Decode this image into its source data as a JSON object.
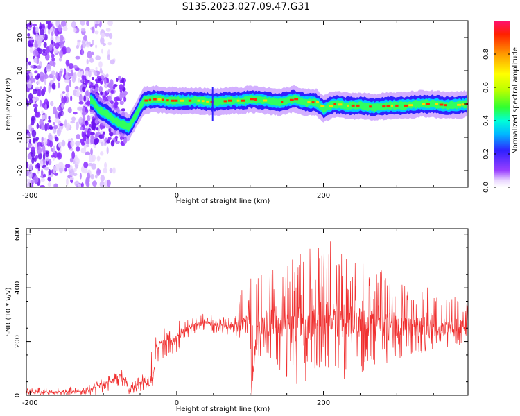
{
  "title": "S135.2023.027.09.47.G31",
  "chart_data": [
    {
      "type": "heatmap",
      "xlabel": "Height of straight line (km)",
      "ylabel": "Frequency (Hz)",
      "xlim": [
        -205,
        397
      ],
      "ylim": [
        -25,
        25
      ],
      "xticks": [
        -200,
        0,
        200
      ],
      "yticks": [
        -20,
        -10,
        0,
        10,
        20
      ],
      "colorbar": {
        "label": "Normalized spectral amplitude",
        "ticks": [
          "0.0",
          "0.2",
          "0.4",
          "0.6",
          "0.8"
        ],
        "tick_values": [
          0.0,
          0.2,
          0.4,
          0.6,
          0.8
        ],
        "range": [
          0,
          1
        ]
      },
      "ridge": {
        "x": [
          -115,
          -105,
          -95,
          -85,
          -75,
          -65,
          -55,
          -45,
          -30,
          -10,
          10,
          30,
          50,
          70,
          90,
          100,
          120,
          140,
          160,
          175,
          190,
          200,
          215,
          230,
          250,
          270,
          290,
          310,
          330,
          350,
          370,
          397
        ],
        "y": [
          1,
          -2,
          -3,
          -5,
          -6,
          -7,
          -3,
          1,
          1.5,
          1,
          1,
          1,
          0.5,
          1,
          1,
          1.5,
          1,
          0.5,
          1.5,
          0.5,
          0.5,
          -1.5,
          0,
          -0.5,
          -0.5,
          -1,
          -0.5,
          -0.5,
          0,
          0,
          -0.5,
          0
        ]
      }
    },
    {
      "type": "line",
      "xlabel": "Height of straight line (km)",
      "ylabel": "SNR (10 * v/v)",
      "xlim": [
        -205,
        397
      ],
      "ylim": [
        0,
        620
      ],
      "xticks": [
        -200,
        0,
        200
      ],
      "yticks": [
        0,
        200,
        400,
        600
      ],
      "color": "#f03030",
      "series": [
        {
          "x": [
            -205,
            -180,
            -150,
            -125,
            -110,
            -95,
            -85,
            -75,
            -65,
            -55,
            -45,
            -38,
            -32,
            -28,
            -20,
            -10,
            0,
            10,
            20,
            30,
            40,
            50,
            60,
            70,
            80,
            90,
            100,
            102,
            110,
            130,
            150,
            170,
            190,
            210,
            230,
            250,
            270,
            290,
            310,
            330,
            350,
            370,
            397
          ],
          "y": [
            10,
            10,
            12,
            15,
            30,
            45,
            55,
            75,
            20,
            35,
            50,
            40,
            70,
            180,
            190,
            200,
            215,
            240,
            260,
            265,
            270,
            265,
            260,
            255,
            260,
            265,
            260,
            20,
            250,
            260,
            265,
            270,
            280,
            290,
            275,
            270,
            265,
            260,
            260,
            255,
            255,
            250,
            260
          ],
          "upper": [
            25,
            30,
            30,
            35,
            50,
            70,
            80,
            100,
            45,
            60,
            80,
            70,
            230,
            240,
            250,
            260,
            275,
            290,
            295,
            300,
            305,
            300,
            295,
            290,
            295,
            440,
            460,
            460,
            440,
            480,
            520,
            540,
            560,
            620,
            540,
            500,
            480,
            460,
            440,
            480,
            420,
            380,
            360
          ],
          "lower": [
            0,
            0,
            0,
            0,
            0,
            10,
            20,
            30,
            0,
            10,
            20,
            10,
            30,
            100,
            130,
            150,
            160,
            190,
            220,
            230,
            235,
            230,
            225,
            215,
            220,
            200,
            190,
            20,
            150,
            120,
            60,
            30,
            40,
            60,
            60,
            80,
            100,
            120,
            140,
            150,
            160,
            170,
            180
          ]
        }
      ]
    }
  ]
}
